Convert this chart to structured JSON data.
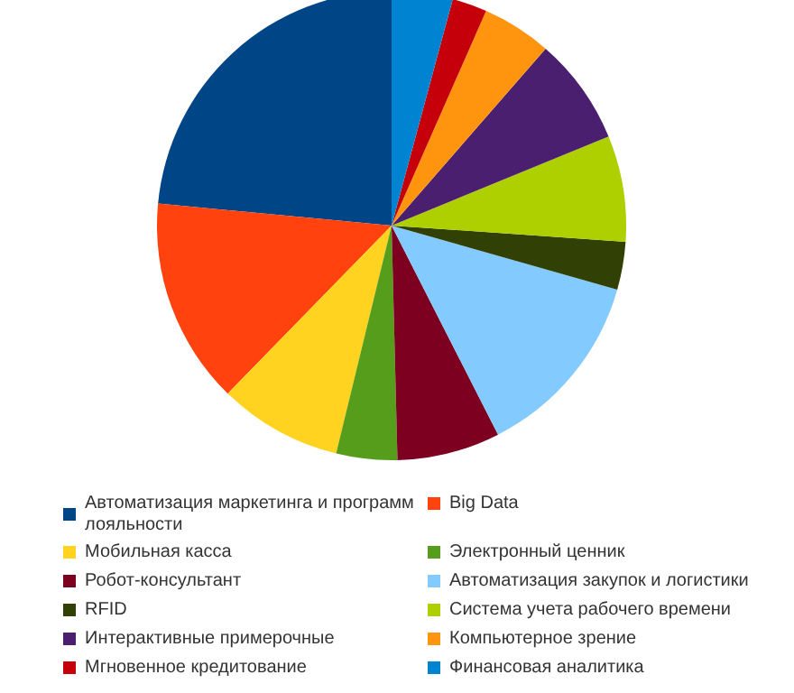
{
  "chart_data": {
    "type": "pie",
    "categories": [
      "Автоматизация маркетинга и программ лояльности",
      "Big Data",
      "Мобильная касса",
      "Электронный ценник",
      "Робот-консультант",
      "Автоматизация закупок и логистики",
      "RFID",
      "Система учета рабочего времени",
      "Интерактивные примерочные",
      "Компьютерное зрение",
      "Мгновенное кредитование",
      "Финансовая аналитика"
    ],
    "values": [
      23.5,
      14.2,
      8.5,
      4.2,
      7.1,
      13.1,
      3.3,
      7.3,
      7.4,
      4.8,
      2.4,
      4.2
    ],
    "colors": [
      "#004586",
      "#ff420e",
      "#ffd320",
      "#579d1c",
      "#7e0021",
      "#83caff",
      "#314004",
      "#aecf00",
      "#4b1f6f",
      "#ff950e",
      "#c5000b",
      "#0084d1"
    ],
    "legend": "bottom"
  }
}
